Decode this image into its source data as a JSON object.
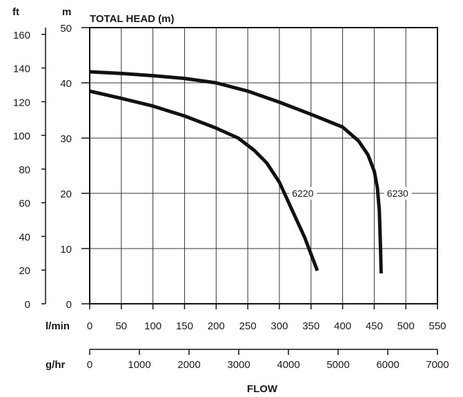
{
  "chart_data": {
    "type": "line",
    "title": "TOTAL HEAD (m)",
    "xlabel": "FLOW",
    "x_unit_primary": "l/min",
    "x_unit_secondary": "g/hr",
    "y_unit_left_ft": "ft",
    "y_unit_left_m": "m",
    "xlim": [
      0,
      550
    ],
    "ylim": [
      0,
      50
    ],
    "grid": true,
    "x_ticks": [
      "0",
      "50",
      "100",
      "150",
      "200",
      "250",
      "300",
      "350",
      "400",
      "450",
      "500",
      "550"
    ],
    "x_ticks_secondary": [
      "0",
      "1000",
      "2000",
      "3000",
      "4000",
      "5000",
      "6000",
      "7000"
    ],
    "y_ticks_m": [
      "0",
      "10",
      "20",
      "30",
      "40",
      "50"
    ],
    "y_ticks_ft": [
      "0",
      "20",
      "40",
      "60",
      "80",
      "100",
      "120",
      "140",
      "160"
    ],
    "series": [
      {
        "name": "6230",
        "points": [
          [
            0,
            42
          ],
          [
            50,
            41.7
          ],
          [
            100,
            41.3
          ],
          [
            150,
            40.8
          ],
          [
            200,
            40
          ],
          [
            250,
            38.5
          ],
          [
            300,
            36.5
          ],
          [
            350,
            34.3
          ],
          [
            400,
            32
          ],
          [
            425,
            29.5
          ],
          [
            440,
            27
          ],
          [
            450,
            24
          ],
          [
            455,
            21
          ],
          [
            458,
            17
          ],
          [
            460,
            10
          ],
          [
            461,
            5.5
          ]
        ]
      },
      {
        "name": "6220",
        "points": [
          [
            0,
            38.5
          ],
          [
            50,
            37.2
          ],
          [
            100,
            35.8
          ],
          [
            150,
            34
          ],
          [
            200,
            31.8
          ],
          [
            235,
            30
          ],
          [
            260,
            27.8
          ],
          [
            280,
            25.5
          ],
          [
            300,
            22
          ],
          [
            320,
            17
          ],
          [
            340,
            12
          ],
          [
            360,
            6
          ]
        ]
      }
    ],
    "series_label_at": [
      [
        470,
        20
      ],
      [
        320,
        20
      ]
    ],
    "colors": {
      "line": "#111111",
      "grid": "#333333",
      "text": "#1a1a1a"
    }
  }
}
